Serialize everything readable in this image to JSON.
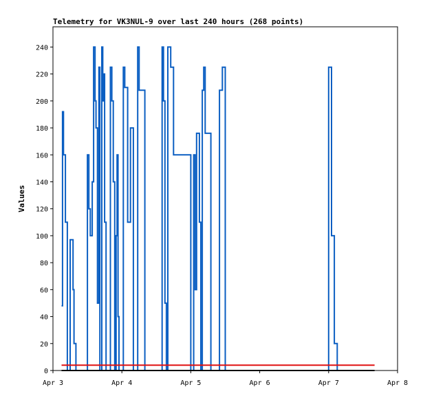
{
  "chart_data": {
    "type": "line",
    "title": "Telemetry for VK3NUL-9 over last 240 hours (268 points)",
    "xlabel": "",
    "ylabel": "Values",
    "ylim": [
      0,
      255
    ],
    "yticks": [
      0,
      20,
      40,
      60,
      80,
      100,
      120,
      140,
      160,
      180,
      200,
      220,
      240
    ],
    "xlim": [
      "Apr 3",
      "Apr 8"
    ],
    "xticks": [
      "Apr 3",
      "Apr 4",
      "Apr 5",
      "Apr 6",
      "Apr 7",
      "Apr 8"
    ],
    "grid": false,
    "legend": "none",
    "series": [
      {
        "color": "#0a5ec2",
        "step": true,
        "x": [
          "Apr 3 03:00",
          "Apr 3 03:20",
          "Apr 3 03:40",
          "Apr 3 04:20",
          "Apr 3 05:00",
          "Apr 3 06:00",
          "Apr 3 07:00",
          "Apr 3 07:20",
          "Apr 3 08:00",
          "Apr 3 09:00",
          "Apr 3 09:30",
          "Apr 3 12:00",
          "Apr 3 12:30",
          "Apr 3 13:00",
          "Apr 3 13:40",
          "Apr 3 14:10",
          "Apr 3 14:40",
          "Apr 3 15:00",
          "Apr 3 15:30",
          "Apr 3 16:00",
          "Apr 3 16:20",
          "Apr 3 16:40",
          "Apr 3 17:00",
          "Apr 3 17:20",
          "Apr 3 17:40",
          "Apr 3 18:00",
          "Apr 3 18:30",
          "Apr 3 19:00",
          "Apr 3 20:00",
          "Apr 3 20:30",
          "Apr 3 21:00",
          "Apr 3 21:30",
          "Apr 3 22:00",
          "Apr 3 22:20",
          "Apr 3 22:40",
          "Apr 3 23:00",
          "Apr 3 23:30",
          "Apr 4 00:00",
          "Apr 4 00:30",
          "Apr 4 01:00",
          "Apr 4 02:00",
          "Apr 4 03:00",
          "Apr 4 04:00",
          "Apr 4 05:00",
          "Apr 4 05:30",
          "Apr 4 06:00",
          "Apr 4 07:00",
          "Apr 4 08:00",
          "Apr 4 09:00",
          "Apr 4 14:00",
          "Apr 4 14:30",
          "Apr 4 15:00",
          "Apr 4 15:30",
          "Apr 4 16:00",
          "Apr 4 17:00",
          "Apr 4 18:00",
          "Apr 5 00:00",
          "Apr 5 00:30",
          "Apr 5 01:00",
          "Apr 5 01:30",
          "Apr 5 02:00",
          "Apr 5 03:00",
          "Apr 5 03:30",
          "Apr 5 04:00",
          "Apr 5 04:30",
          "Apr 5 05:00",
          "Apr 5 06:00",
          "Apr 5 07:00",
          "Apr 5 08:00",
          "Apr 5 10:00",
          "Apr 5 11:00",
          "Apr 5 12:00",
          "Apr 5 13:00",
          "Apr 5 14:00",
          "Apr 5 15:00",
          "Apr 5 16:00",
          "Apr 5 17:00",
          "Apr 5 18:00",
          "Apr 5 19:00",
          "Apr 5 20:00",
          "Apr 5 21:00",
          "Apr 5 22:00",
          "Apr 6 00:00",
          "Apr 6 01:00",
          "Apr 6 02:00",
          "Apr 6 03:00",
          "Apr 6 04:00",
          "Apr 6 05:00",
          "Apr 6 06:00",
          "Apr 6 07:00",
          "Apr 6 08:00",
          "Apr 6 09:00",
          "Apr 6 10:00",
          "Apr 6 11:00",
          "Apr 6 12:00",
          "Apr 7 00:00",
          "Apr 7 01:00",
          "Apr 7 02:00",
          "Apr 7 03:00"
        ],
        "values": [
          48,
          192,
          160,
          110,
          0,
          97,
          60,
          20,
          0,
          0,
          0,
          160,
          120,
          100,
          140,
          240,
          200,
          180,
          50,
          225,
          0,
          0,
          240,
          200,
          220,
          110,
          0,
          0,
          225,
          200,
          140,
          0,
          100,
          160,
          40,
          0,
          0,
          0,
          225,
          210,
          110,
          180,
          0,
          0,
          240,
          208,
          208,
          0,
          0,
          240,
          200,
          50,
          0,
          240,
          225,
          160,
          0,
          0,
          160,
          60,
          176,
          110,
          0,
          208,
          225,
          176,
          176,
          0,
          0,
          208,
          225,
          0,
          0,
          0,
          0,
          0,
          0,
          0,
          0,
          0,
          0,
          0,
          0,
          0,
          0,
          0,
          0,
          0,
          0,
          0,
          0,
          0,
          0,
          0,
          0,
          225,
          100,
          20,
          0
        ]
      },
      {
        "color": "#e01010",
        "x": [
          "Apr 3 03:00",
          "Apr 7 16:00"
        ],
        "values": [
          4,
          4
        ]
      },
      {
        "color": "#000000",
        "x": [
          "Apr 3 03:00",
          "Apr 7 16:00"
        ],
        "values": [
          0,
          0
        ]
      }
    ]
  }
}
